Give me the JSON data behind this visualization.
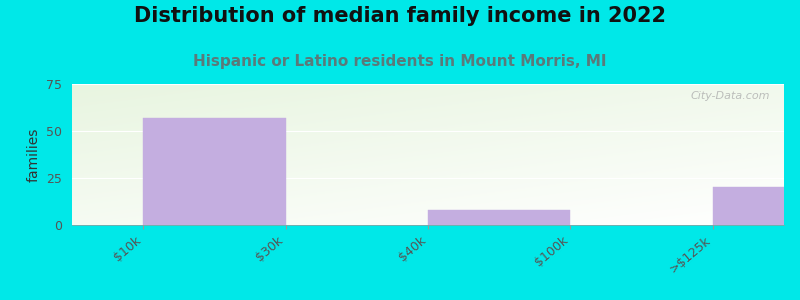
{
  "title": "Distribution of median family income in 2022",
  "subtitle": "Hispanic or Latino residents in Mount Morris, MI",
  "ylabel": "families",
  "categories": [
    "$10k",
    "$30k",
    "$40k",
    "$100k",
    ">$125k"
  ],
  "values": [
    57,
    0,
    8,
    0,
    20
  ],
  "bar_color": "#c4aee0",
  "bar_edgecolor": "#c4aee0",
  "ylim": [
    0,
    75
  ],
  "yticks": [
    0,
    25,
    50,
    75
  ],
  "background_color": "#00e8e8",
  "plot_bg_top_left": "#e8f5e0",
  "plot_bg_top_right": "#ffffff",
  "title_fontsize": 15,
  "subtitle_fontsize": 11,
  "subtitle_color": "#5a7a7a",
  "ylabel_fontsize": 10,
  "tick_fontsize": 9,
  "watermark": "City-Data.com",
  "bar_left_edges": [
    0,
    1,
    2,
    3,
    4
  ],
  "bar_widths": [
    1,
    1,
    1,
    1,
    1
  ],
  "tick_positions": [
    0,
    1,
    2,
    3,
    4
  ]
}
